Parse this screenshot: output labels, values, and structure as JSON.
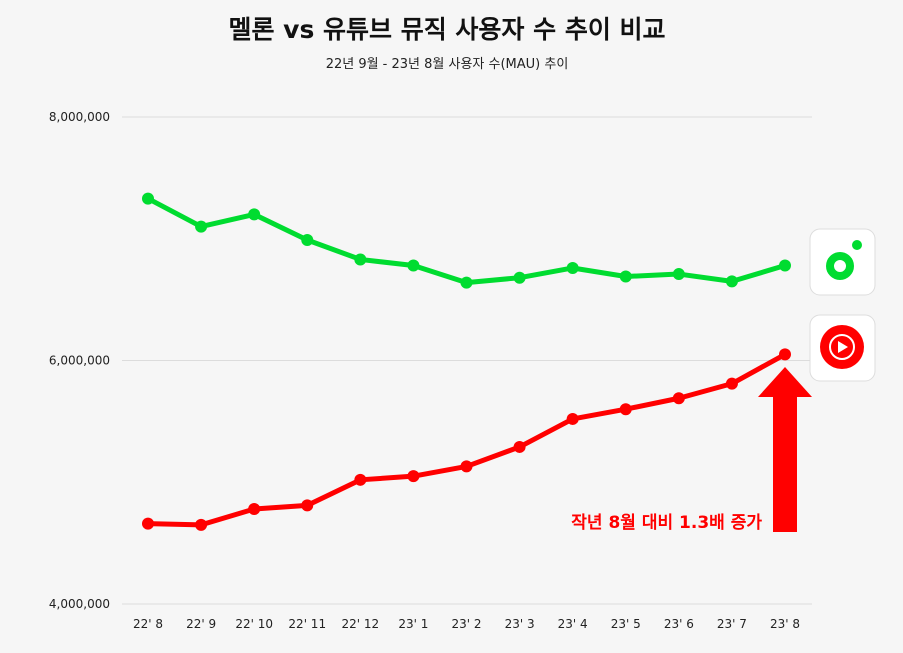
{
  "chart_data": {
    "type": "line",
    "title": "멜론 vs 유튜브 뮤직 사용자 수 추이 비교",
    "subtitle": "22년 9월 - 23년 8월 사용자 수(MAU) 추이",
    "xlabel": "",
    "ylabel": "",
    "ylim": [
      4000000,
      8000000
    ],
    "yticks": [
      4000000,
      6000000,
      8000000
    ],
    "ytick_labels": [
      "4,000,000",
      "6,000,000",
      "8,000,000"
    ],
    "grid": true,
    "categories": [
      "22' 8",
      "22' 9",
      "22' 10",
      "22' 11",
      "22' 12",
      "23' 1",
      "23' 2",
      "23' 3",
      "23' 4",
      "23' 5",
      "23' 6",
      "23' 7",
      "23' 8"
    ],
    "series": [
      {
        "name": "멜론",
        "color": "#00dc30",
        "icon": "melon-logo-icon",
        "values": [
          7330000,
          7100000,
          7200000,
          6990000,
          6830000,
          6780000,
          6640000,
          6680000,
          6760000,
          6690000,
          6710000,
          6650000,
          6780000
        ]
      },
      {
        "name": "유튜브 뮤직",
        "color": "#ff0000",
        "icon": "youtube-music-logo-icon",
        "values": [
          4660000,
          4650000,
          4780000,
          4810000,
          5020000,
          5050000,
          5130000,
          5290000,
          5520000,
          5600000,
          5690000,
          5810000,
          6050000
        ]
      }
    ],
    "annotation": "작년 8월 대비 1.3배 증가"
  }
}
